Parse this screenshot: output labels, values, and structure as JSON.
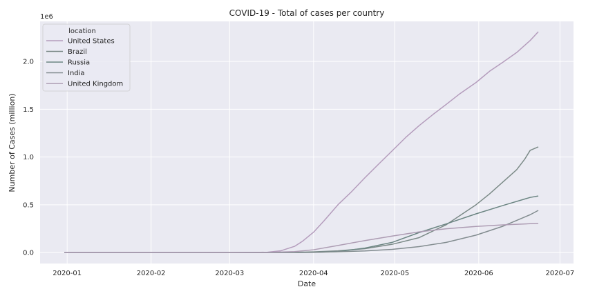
{
  "chart_data": {
    "type": "line",
    "title": "COVID-19 - Total of cases per country",
    "xlabel": "Date",
    "ylabel": "Number of Cases (million)",
    "y_offset_label": "1e6",
    "x_tick_labels": [
      "2020-01",
      "2020-02",
      "2020-03",
      "2020-04",
      "2020-05",
      "2020-06",
      "2020-07"
    ],
    "x_ticks": [
      "2020-01-01",
      "2020-02-01",
      "2020-03-01",
      "2020-04-01",
      "2020-05-01",
      "2020-06-01",
      "2020-07-01"
    ],
    "xlim": [
      "2019-12-22",
      "2020-07-06"
    ],
    "y_tick_labels": [
      "0.0",
      "0.5",
      "1.0",
      "1.5",
      "2.0"
    ],
    "y_ticks": [
      0,
      500000,
      1000000,
      1500000,
      2000000
    ],
    "ylim": [
      -115000,
      2420000
    ],
    "grid": true,
    "legend_title": "location",
    "legend_position": "top-left",
    "series": [
      {
        "name": "United States",
        "color": "#b49cbc",
        "points": [
          [
            "2019-12-31",
            0
          ],
          [
            "2020-02-15",
            15
          ],
          [
            "2020-03-01",
            75
          ],
          [
            "2020-03-10",
            900
          ],
          [
            "2020-03-15",
            3500
          ],
          [
            "2020-03-20",
            19000
          ],
          [
            "2020-03-25",
            65000
          ],
          [
            "2020-03-28",
            120000
          ],
          [
            "2020-04-01",
            213000
          ],
          [
            "2020-04-05",
            336000
          ],
          [
            "2020-04-10",
            500000
          ],
          [
            "2020-04-15",
            636000
          ],
          [
            "2020-04-20",
            784000
          ],
          [
            "2020-04-25",
            925000
          ],
          [
            "2020-04-30",
            1064000
          ],
          [
            "2020-05-05",
            1204000
          ],
          [
            "2020-05-10",
            1329000
          ],
          [
            "2020-05-15",
            1443000
          ],
          [
            "2020-05-20",
            1551000
          ],
          [
            "2020-05-25",
            1662000
          ],
          [
            "2020-05-31",
            1780000
          ],
          [
            "2020-06-05",
            1898000
          ],
          [
            "2020-06-10",
            1994000
          ],
          [
            "2020-06-15",
            2094000
          ],
          [
            "2020-06-20",
            2220000
          ],
          [
            "2020-06-23",
            2312000
          ]
        ]
      },
      {
        "name": "Brazil",
        "color": "#7b8a87",
        "points": [
          [
            "2019-12-31",
            0
          ],
          [
            "2020-03-01",
            2
          ],
          [
            "2020-03-15",
            200
          ],
          [
            "2020-03-25",
            2200
          ],
          [
            "2020-04-01",
            6800
          ],
          [
            "2020-04-10",
            18000
          ],
          [
            "2020-04-20",
            40000
          ],
          [
            "2020-04-30",
            86000
          ],
          [
            "2020-05-10",
            156000
          ],
          [
            "2020-05-20",
            291000
          ],
          [
            "2020-05-31",
            500000
          ],
          [
            "2020-06-05",
            614000
          ],
          [
            "2020-06-10",
            740000
          ],
          [
            "2020-06-15",
            867000
          ],
          [
            "2020-06-18",
            978000
          ],
          [
            "2020-06-20",
            1070000
          ],
          [
            "2020-06-23",
            1106000
          ]
        ]
      },
      {
        "name": "Russia",
        "color": "#6b8582",
        "points": [
          [
            "2019-12-31",
            0
          ],
          [
            "2020-02-01",
            2
          ],
          [
            "2020-03-15",
            60
          ],
          [
            "2020-03-25",
            840
          ],
          [
            "2020-04-01",
            2800
          ],
          [
            "2020-04-10",
            10000
          ],
          [
            "2020-04-20",
            47000
          ],
          [
            "2020-04-30",
            106000
          ],
          [
            "2020-05-10",
            209000
          ],
          [
            "2020-05-20",
            300000
          ],
          [
            "2020-05-31",
            405000
          ],
          [
            "2020-06-10",
            493000
          ],
          [
            "2020-06-20",
            577000
          ],
          [
            "2020-06-23",
            592000
          ]
        ]
      },
      {
        "name": "India",
        "color": "#828c8f",
        "points": [
          [
            "2019-12-31",
            0
          ],
          [
            "2020-01-30",
            1
          ],
          [
            "2020-03-15",
            107
          ],
          [
            "2020-03-25",
            600
          ],
          [
            "2020-04-01",
            1800
          ],
          [
            "2020-04-10",
            7500
          ],
          [
            "2020-04-20",
            17000
          ],
          [
            "2020-04-30",
            33000
          ],
          [
            "2020-05-10",
            62000
          ],
          [
            "2020-05-20",
            106000
          ],
          [
            "2020-05-31",
            182000
          ],
          [
            "2020-06-10",
            276000
          ],
          [
            "2020-06-20",
            396000
          ],
          [
            "2020-06-23",
            441000
          ]
        ]
      },
      {
        "name": "United Kingdom",
        "color": "#ad9cb3",
        "points": [
          [
            "2019-12-31",
            0
          ],
          [
            "2020-02-01",
            2
          ],
          [
            "2020-03-01",
            35
          ],
          [
            "2020-03-15",
            1400
          ],
          [
            "2020-03-25",
            9500
          ],
          [
            "2020-04-01",
            29000
          ],
          [
            "2020-04-10",
            74000
          ],
          [
            "2020-04-20",
            125000
          ],
          [
            "2020-04-30",
            172000
          ],
          [
            "2020-05-10",
            216000
          ],
          [
            "2020-05-20",
            249000
          ],
          [
            "2020-05-31",
            273000
          ],
          [
            "2020-06-10",
            289000
          ],
          [
            "2020-06-20",
            302000
          ],
          [
            "2020-06-23",
            306000
          ]
        ]
      }
    ]
  }
}
